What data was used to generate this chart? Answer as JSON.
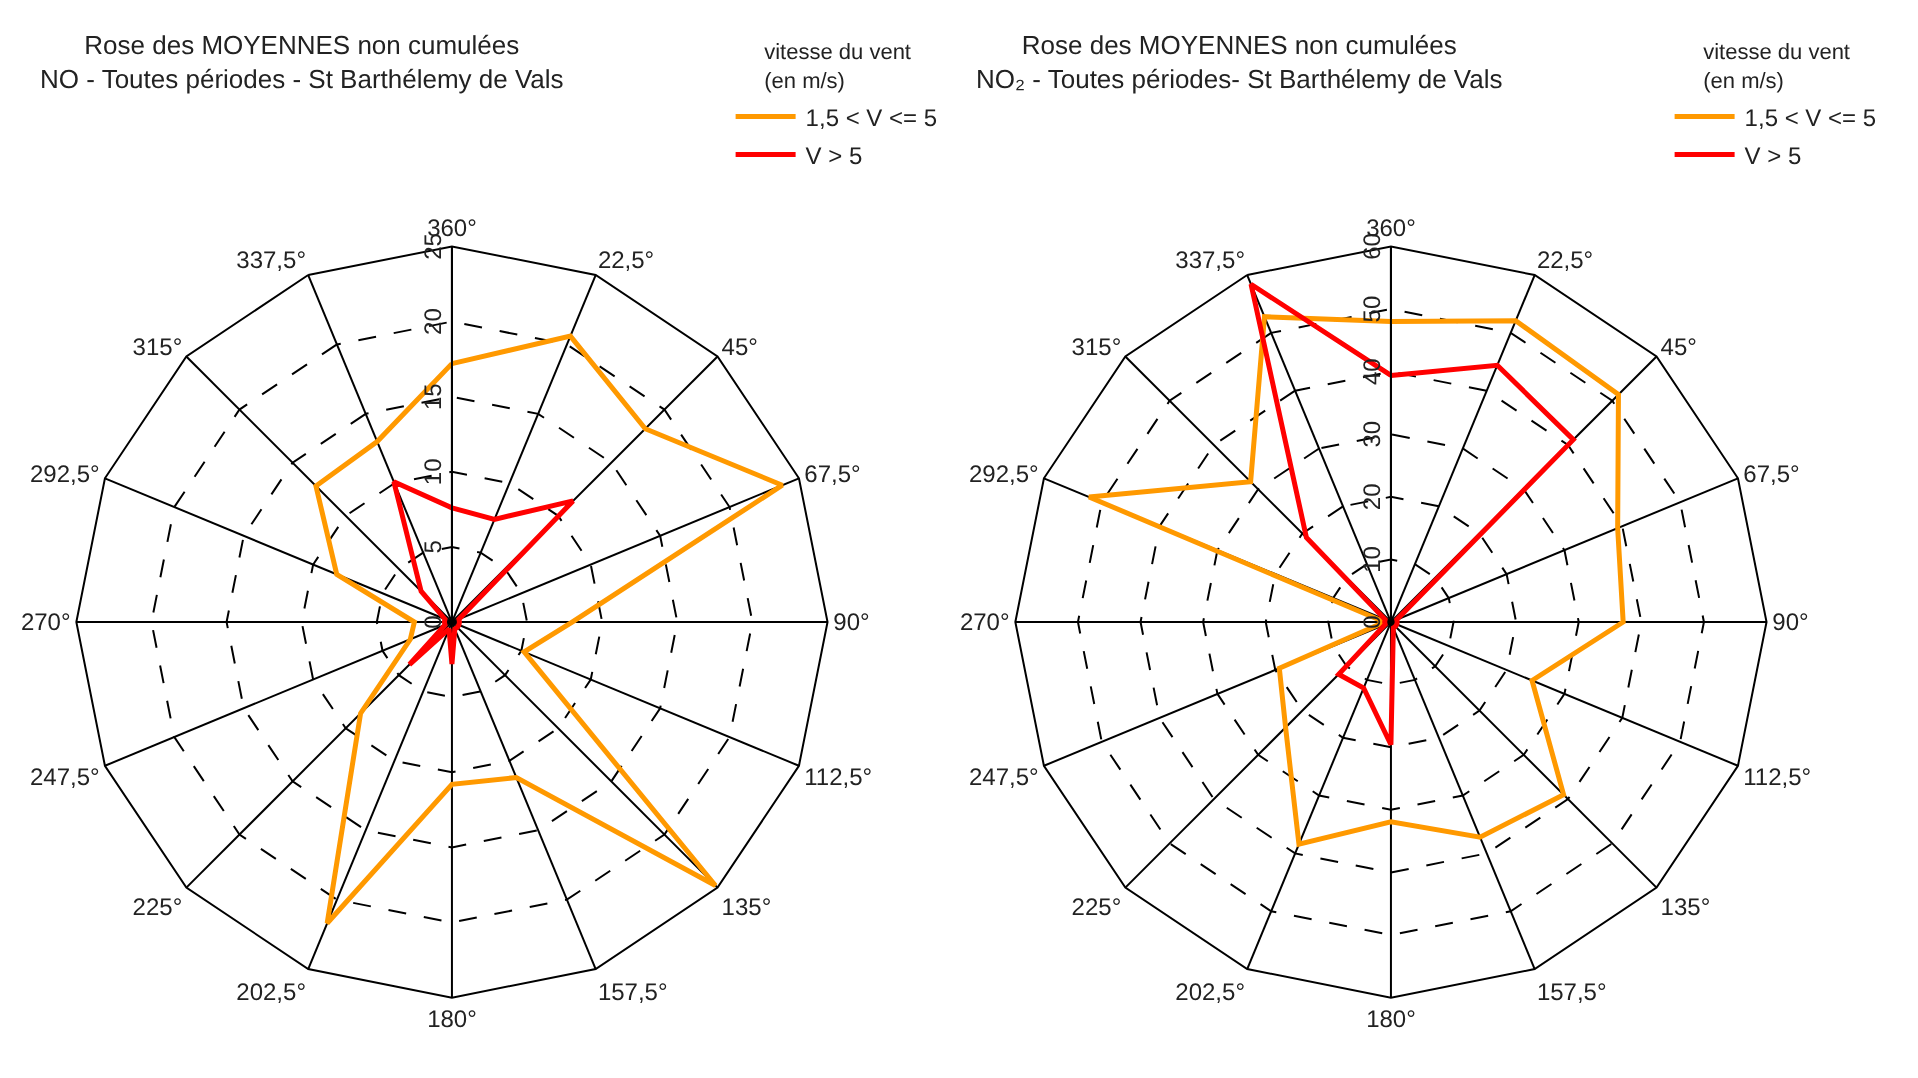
{
  "chart_data": [
    {
      "type": "radar",
      "title": "Rose des MOYENNES non cumulées",
      "subtitle": "NO - Toutes périodes - St Barthélemy de Vals",
      "legend_title": "vitesse du vent\n(en m/s)",
      "legend": "top right",
      "grid": true,
      "categories": [
        "360°",
        "22,5°",
        "45°",
        "67,5°",
        "90°",
        "112,5°",
        "135°",
        "157,5°",
        "180°",
        "202,5°",
        "225°",
        "247,5°",
        "270°",
        "292,5°",
        "315°",
        "337,5°"
      ],
      "ylim": [
        0,
        25
      ],
      "yticks": [
        0,
        5,
        10,
        15,
        20,
        25
      ],
      "series": [
        {
          "name": "1,5 < V <= 5",
          "color": "#ff9900",
          "values": [
            17.2,
            20.6,
            18.2,
            23.8,
            8.0,
            5.2,
            24.8,
            11.2,
            10.8,
            21.7,
            8.6,
            3.0,
            2.5,
            8.3,
            12.8,
            13.0
          ]
        },
        {
          "name": "V > 5",
          "color": "#ff0000",
          "values": [
            7.6,
            7.4,
            11.4,
            0.5,
            0.5,
            0.5,
            0.5,
            0.5,
            2.8,
            0.5,
            4.0,
            0.5,
            0.5,
            0.5,
            2.9,
            10.1
          ]
        }
      ]
    },
    {
      "type": "radar",
      "title": "Rose des MOYENNES non cumulées",
      "subtitle": "NO₂ - Toutes périodes- St Barthélemy de Vals",
      "legend_title": "vitesse du vent\n(en m/s)",
      "legend": "top right",
      "grid": true,
      "categories": [
        "360°",
        "22,5°",
        "45°",
        "67,5°",
        "90°",
        "112,5°",
        "135°",
        "157,5°",
        "180°",
        "202,5°",
        "225°",
        "247,5°",
        "270°",
        "292,5°",
        "315°",
        "337,5°"
      ],
      "ylim": [
        0,
        60
      ],
      "yticks": [
        0,
        10,
        20,
        30,
        40,
        50,
        60
      ],
      "series": [
        {
          "name": "1,5 < V <= 5",
          "color": "#ff9900",
          "values": [
            48.0,
            52.1,
            51.4,
            39.2,
            37.1,
            24.4,
            39.0,
            37.2,
            31.9,
            38.4,
            23.8,
            19.3,
            1,
            52.2,
            31.7,
            52.8
          ]
        },
        {
          "name": "V > 5",
          "color": "#ff0000",
          "values": [
            39.4,
            44.4,
            41.2,
            1,
            1,
            1,
            1,
            1,
            19.6,
            11.4,
            11.8,
            1,
            1,
            1,
            19.1,
            58.4
          ]
        }
      ]
    }
  ]
}
